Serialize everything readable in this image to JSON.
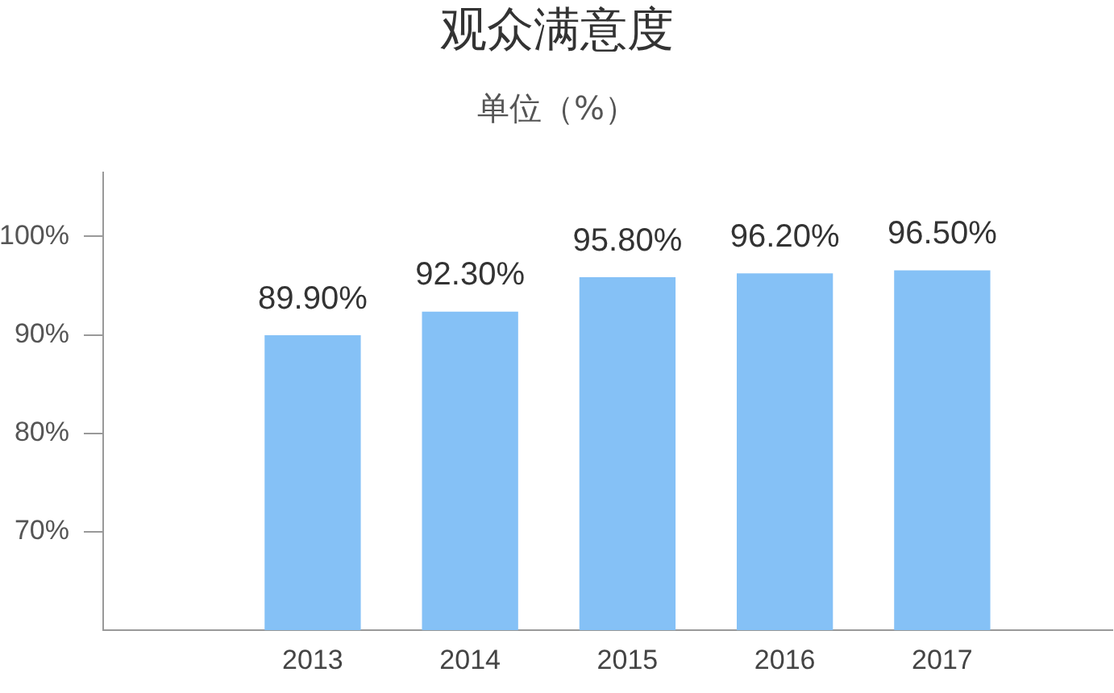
{
  "chart_data": {
    "type": "bar",
    "title": "观众满意度",
    "subtitle": "单位（%）",
    "categories": [
      "2013",
      "2014",
      "2015",
      "2016",
      "2017"
    ],
    "values": [
      89.9,
      92.3,
      95.8,
      96.2,
      96.5
    ],
    "value_labels": [
      "89.90%",
      "92.30%",
      "95.80%",
      "96.20%",
      "96.50%"
    ],
    "color": "#85c1f6",
    "ylim": [
      60,
      106.5
    ],
    "yticks": [
      {
        "value": 70,
        "label": "70%"
      },
      {
        "value": 80,
        "label": "80%"
      },
      {
        "value": 90,
        "label": "90%"
      },
      {
        "value": 100,
        "label": "100%"
      }
    ]
  }
}
